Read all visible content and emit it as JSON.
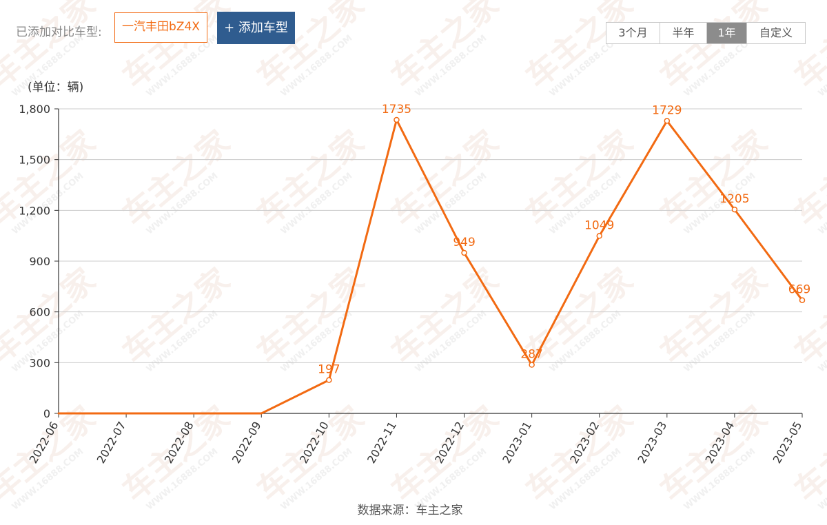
{
  "header": {
    "added_label": "已添加对比车型:",
    "model_tag": "一汽丰田bZ4X",
    "add_button": "+ 添加车型",
    "range_options": [
      "3个月",
      "半年",
      "1年",
      "自定义"
    ],
    "active_range": "1年"
  },
  "footer": {
    "source": "数据来源：车主之家"
  },
  "watermark": {
    "text": "车主之家",
    "url": "WWW.16888.COM"
  },
  "colors": {
    "series": "#f26a12",
    "accent": "#2f5c8f",
    "grid": "#cccccc",
    "axis": "#333333"
  },
  "chart_data": {
    "type": "line",
    "unit_label": "(单位：辆)",
    "x": [
      "2022-06",
      "2022-07",
      "2022-08",
      "2022-09",
      "2022-10",
      "2022-11",
      "2022-12",
      "2023-01",
      "2023-02",
      "2023-03",
      "2023-04",
      "2023-05"
    ],
    "series": [
      {
        "values": [
          0,
          0,
          0,
          0,
          197,
          1735,
          949,
          287,
          1049,
          1729,
          1205,
          669
        ]
      }
    ],
    "data_labels": [
      "",
      "",
      "",
      "",
      "197",
      "1735",
      "949",
      "287",
      "1049",
      "1729",
      "1205",
      "669"
    ],
    "y_ticks": [
      "0",
      "300",
      "600",
      "900",
      "1,200",
      "1,500",
      "1,800"
    ],
    "y_tick_values": [
      0,
      300,
      600,
      900,
      1200,
      1500,
      1800
    ],
    "ylim": [
      0,
      1800
    ],
    "grid": true,
    "legend": "none"
  }
}
